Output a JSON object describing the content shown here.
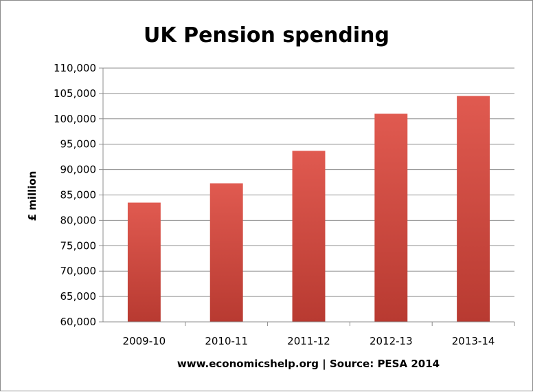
{
  "colors": {
    "bar": "#d14a40",
    "bar_light": "#e05a50",
    "bar_dark": "#b83a31",
    "grid": "#8c8c8c",
    "axis": "#8c8c8c"
  },
  "chart_data": {
    "type": "bar",
    "title": "UK Pension spending",
    "xlabel": "www.economicshelp.org | Source: PESA 2014",
    "ylabel": "£ million",
    "categories": [
      "2009-10",
      "2010-11",
      "2011-12",
      "2012-13",
      "2013-14"
    ],
    "values": [
      83500,
      87300,
      93700,
      101000,
      104500
    ],
    "ylim": [
      60000,
      110000
    ],
    "yticks": [
      60000,
      65000,
      70000,
      75000,
      80000,
      85000,
      90000,
      95000,
      100000,
      105000,
      110000
    ],
    "ytick_labels": [
      "60,000",
      "65,000",
      "70,000",
      "75,000",
      "80,000",
      "85,000",
      "90,000",
      "95,000",
      "100,000",
      "105,000",
      "110,000"
    ],
    "grid": true,
    "legend": "none"
  }
}
